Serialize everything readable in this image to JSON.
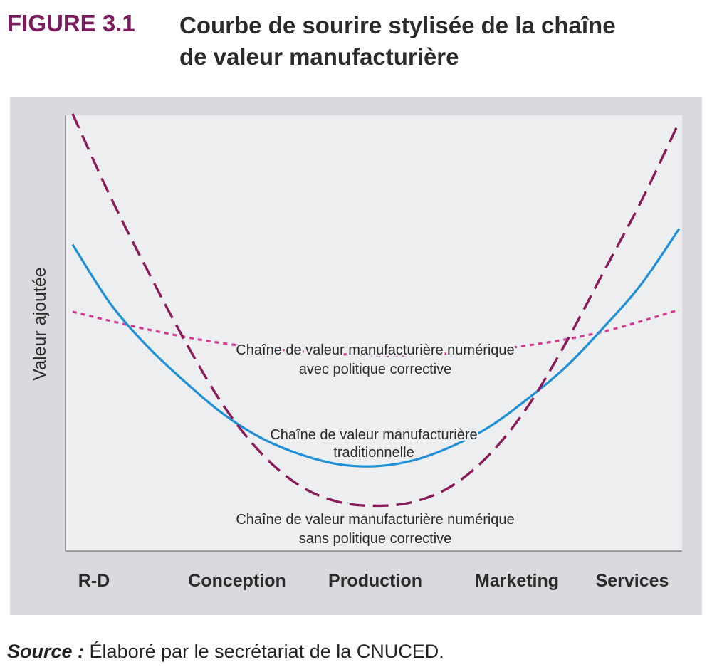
{
  "figure": {
    "label": "FIGURE 3.1",
    "title_line1": "Courbe de sourire stylisée de la chaîne",
    "title_line2": "de valeur manufacturière"
  },
  "source": {
    "label": "Source :",
    "text": "Élaboré par le secrétariat de la CNUCED."
  },
  "colors": {
    "traditional": "#1f8fd6",
    "digital_without": "#8b1a5a",
    "digital_with": "#d63a93",
    "panel": "#d9dadd",
    "plot": "#edeef0"
  },
  "chart_data": {
    "type": "line",
    "title": "Courbe de sourire stylisée de la chaîne de valeur manufacturière",
    "ylabel": "Valeur ajoutée",
    "xlabel": "",
    "categories": [
      "R-D",
      "Conception",
      "Production",
      "Marketing",
      "Services"
    ],
    "xlim": [
      0,
      4
    ],
    "ylim": [
      0,
      100
    ],
    "grid": false,
    "legend": "none",
    "series": [
      {
        "name": "Chaîne de valeur manufacturière traditionnelle",
        "style": "solid",
        "x": [
          0,
          0.25,
          0.5,
          0.75,
          1,
          1.25,
          1.5,
          1.75,
          2,
          2.25,
          2.5,
          2.75,
          3,
          3.25,
          3.5,
          3.75,
          4
        ],
        "values": [
          67,
          52,
          41,
          32,
          24,
          18,
          14,
          11.5,
          11,
          12.5,
          16,
          21,
          28,
          36,
          46,
          57,
          71
        ]
      },
      {
        "name": "Chaîne de valeur manufacturière numérique sans politique corrective",
        "style": "dashed",
        "x": [
          0,
          0.25,
          0.5,
          0.75,
          1,
          1.25,
          1.5,
          1.75,
          2,
          2.25,
          2.5,
          2.75,
          3,
          3.25,
          3.5,
          3.75,
          4
        ],
        "values": [
          100,
          79,
          60,
          42,
          26,
          14,
          6,
          2,
          1,
          2,
          6,
          14,
          26,
          42,
          60,
          78,
          98
        ]
      },
      {
        "name": "Chaîne de valeur manufacturière numérique avec politique corrective",
        "style": "dotted",
        "x": [
          0,
          0.5,
          1,
          1.5,
          2,
          2.5,
          3,
          3.5,
          4
        ],
        "values": [
          50,
          45.5,
          42,
          40,
          39,
          39.5,
          41.5,
          45,
          50.5
        ]
      }
    ],
    "annotations": [
      {
        "line1": "Chaîne de valeur manufacturière numérique",
        "line2": "avec politique corrective"
      },
      {
        "line1": "Chaîne de valeur manufacturière",
        "line2": "traditionnelle"
      },
      {
        "line1": "Chaîne de valeur manufacturière numérique",
        "line2": "sans politique corrective"
      }
    ]
  }
}
